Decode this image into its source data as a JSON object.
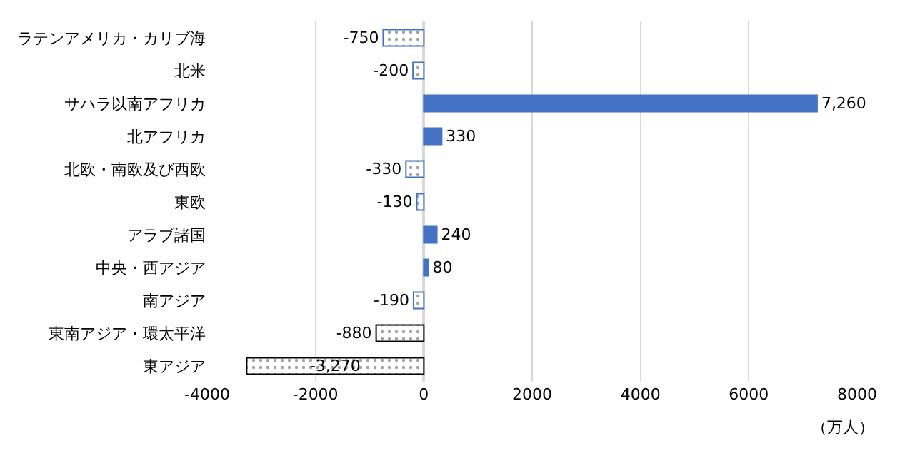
{
  "chart_data": {
    "type": "bar",
    "orientation": "horizontal",
    "xlabel": "（万人）",
    "categories": [
      "ラテンアメリカ・カリブ海",
      "北米",
      "サハラ以南アフリカ",
      "北アフリカ",
      "北欧・南欧及び西欧",
      "東欧",
      "アラブ諸国",
      "中央・西アジア",
      "南アジア",
      "東南アジア・環太平洋",
      "東アジア"
    ],
    "values": [
      -750,
      -200,
      7260,
      330,
      -330,
      -130,
      240,
      80,
      -190,
      -880,
      -3270
    ],
    "colors": [
      "#4472c4",
      "#4472c4",
      "#4472c4",
      "#4472c4",
      "#4472c4",
      "#4472c4",
      "#4472c4",
      "#4472c4",
      "#4472c4",
      "#000000",
      "#000000"
    ],
    "xlim": [
      -4000,
      8000
    ],
    "xticks": [
      -4000,
      -2000,
      0,
      2000,
      4000,
      6000,
      8000
    ],
    "grid": "x",
    "value_labels": [
      "-750",
      "-200",
      "7,260",
      "330",
      "-330",
      "-130",
      "240",
      "80",
      "-190",
      "-880",
      "-3,270"
    ]
  }
}
